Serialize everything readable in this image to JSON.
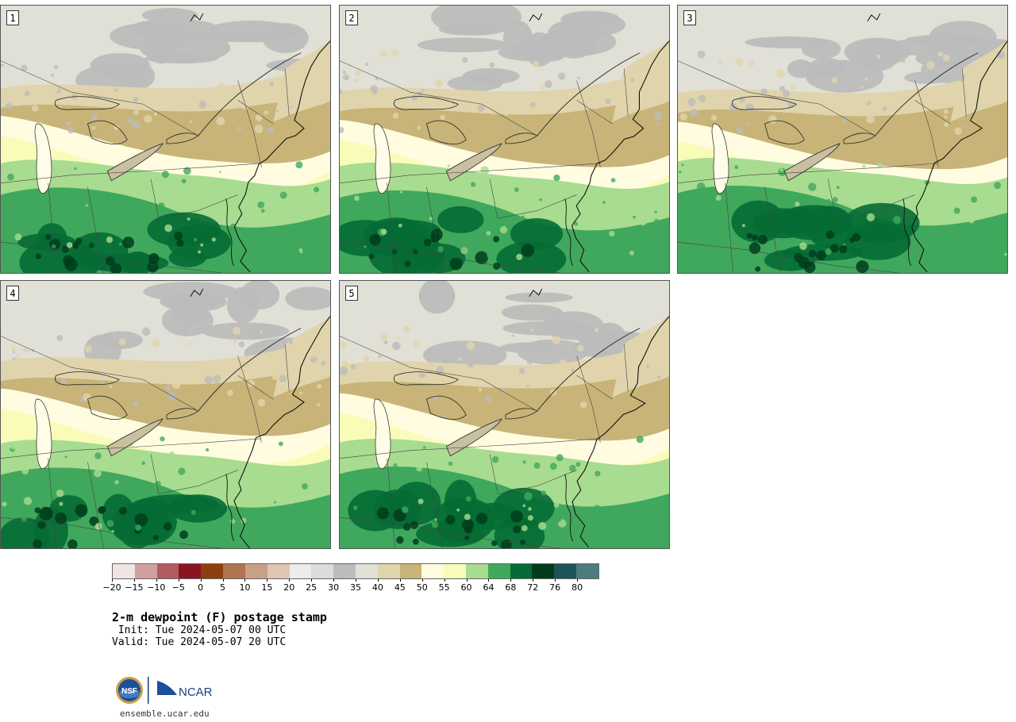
{
  "panels": [
    {
      "label": "1"
    },
    {
      "label": "2"
    },
    {
      "label": "3"
    },
    {
      "label": "4"
    },
    {
      "label": "5"
    }
  ],
  "colorbar": {
    "colors": [
      "#f0e4e4",
      "#d0a0a0",
      "#b05c60",
      "#8c1420",
      "#8c4010",
      "#b07450",
      "#c8a088",
      "#e0c4b4",
      "#ececec",
      "#dcdcdc",
      "#bcbcbc",
      "#e0e0d6",
      "#e0d4ac",
      "#c8b478",
      "#fffce0",
      "#f8fcb8",
      "#a8dc90",
      "#40a85c",
      "#046c34",
      "#003c1c",
      "#1c5458",
      "#4c7c80"
    ],
    "ticks": [
      "−20",
      "−15",
      "−10",
      "−5",
      "0",
      "5",
      "10",
      "15",
      "20",
      "25",
      "30",
      "35",
      "40",
      "45",
      "50",
      "55",
      "60",
      "64",
      "68",
      "72",
      "76",
      "80"
    ]
  },
  "title": "2-m dewpoint (F) postage stamp",
  "init_line": " Init: Tue 2024-05-07 00 UTC",
  "valid_line": "Valid: Tue 2024-05-07 20 UTC",
  "logos": {
    "nsf": "NSF",
    "ncar": "NCAR"
  },
  "url": "ensemble.ucar.edu"
}
